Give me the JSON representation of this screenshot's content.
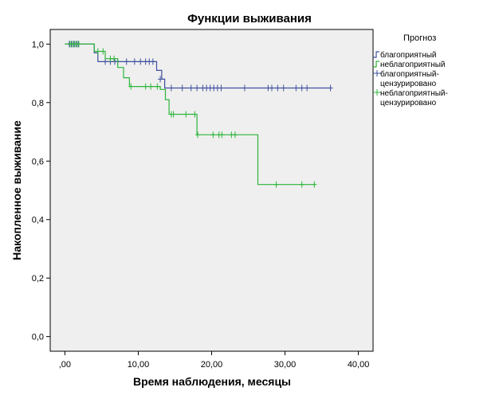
{
  "chart_data": {
    "type": "line",
    "title": "Функции выживания",
    "xlabel": "Время наблюдения, месяцы",
    "ylabel": "Накопленное выживание",
    "xlim": [
      -2,
      42
    ],
    "ylim": [
      -0.05,
      1.05
    ],
    "x_ticks": [
      0,
      10,
      20,
      30,
      40
    ],
    "x_tick_labels": [
      ",00",
      "10,00",
      "20,00",
      "30,00",
      "40,00"
    ],
    "y_ticks": [
      0,
      0.2,
      0.4,
      0.6,
      0.8,
      1.0
    ],
    "y_tick_labels": [
      "0,0",
      "0,2",
      "0,4",
      "0,6",
      "0,8",
      "1,0"
    ],
    "grid": false,
    "legend_title": "Прогноз",
    "legend_position": "right",
    "legend_entries": [
      {
        "label": "благоприятный",
        "symbol": "step",
        "color": "#3d4f9e"
      },
      {
        "label": "неблагоприятный",
        "symbol": "step",
        "color": "#2db53a"
      },
      {
        "label": "благоприятный-цензурировано",
        "symbol": "cross",
        "color": "#3d4f9e"
      },
      {
        "label": "неблагоприятный-цензурировано",
        "symbol": "cross",
        "color": "#2db53a"
      }
    ],
    "series": [
      {
        "name": "благоприятный",
        "color": "#3d4f9e",
        "steps": [
          [
            0,
            1.0
          ],
          [
            4.0,
            0.97
          ],
          [
            4.5,
            0.94
          ],
          [
            12.5,
            0.91
          ],
          [
            13.2,
            0.88
          ],
          [
            13.6,
            0.85
          ],
          [
            36.2,
            0.85
          ]
        ],
        "censored": [
          [
            0.6,
            1.0
          ],
          [
            0.9,
            1.0
          ],
          [
            1.2,
            1.0
          ],
          [
            1.5,
            1.0
          ],
          [
            1.8,
            1.0
          ],
          [
            5.5,
            0.94
          ],
          [
            6.2,
            0.94
          ],
          [
            6.8,
            0.94
          ],
          [
            7.2,
            0.94
          ],
          [
            8.4,
            0.94
          ],
          [
            9.5,
            0.94
          ],
          [
            10.3,
            0.94
          ],
          [
            11.0,
            0.94
          ],
          [
            11.5,
            0.94
          ],
          [
            12.0,
            0.94
          ],
          [
            13.0,
            0.88
          ],
          [
            14.5,
            0.85
          ],
          [
            16.0,
            0.85
          ],
          [
            17.2,
            0.85
          ],
          [
            18.0,
            0.85
          ],
          [
            18.8,
            0.85
          ],
          [
            19.3,
            0.85
          ],
          [
            19.8,
            0.85
          ],
          [
            20.3,
            0.85
          ],
          [
            20.8,
            0.85
          ],
          [
            21.3,
            0.85
          ],
          [
            24.5,
            0.85
          ],
          [
            27.7,
            0.85
          ],
          [
            28.2,
            0.85
          ],
          [
            29.0,
            0.85
          ],
          [
            29.8,
            0.85
          ],
          [
            31.5,
            0.85
          ],
          [
            32.3,
            0.85
          ],
          [
            33.0,
            0.85
          ],
          [
            36.2,
            0.85
          ]
        ]
      },
      {
        "name": "неблагоприятный",
        "color": "#2db53a",
        "steps": [
          [
            0,
            1.0
          ],
          [
            4.0,
            0.975
          ],
          [
            5.5,
            0.95
          ],
          [
            7.2,
            0.92
          ],
          [
            8.0,
            0.885
          ],
          [
            8.8,
            0.855
          ],
          [
            13.0,
            0.845
          ],
          [
            13.7,
            0.81
          ],
          [
            14.2,
            0.76
          ],
          [
            18.0,
            0.69
          ],
          [
            26.3,
            0.52
          ],
          [
            34.0,
            0.52
          ]
        ],
        "censored": [
          [
            0.7,
            1.0
          ],
          [
            1.0,
            1.0
          ],
          [
            1.3,
            1.0
          ],
          [
            1.6,
            1.0
          ],
          [
            1.9,
            1.0
          ],
          [
            4.5,
            0.975
          ],
          [
            5.2,
            0.975
          ],
          [
            6.2,
            0.95
          ],
          [
            6.7,
            0.95
          ],
          [
            9.0,
            0.855
          ],
          [
            11.0,
            0.855
          ],
          [
            11.7,
            0.855
          ],
          [
            12.6,
            0.855
          ],
          [
            14.5,
            0.76
          ],
          [
            14.8,
            0.76
          ],
          [
            16.5,
            0.76
          ],
          [
            17.7,
            0.76
          ],
          [
            18.1,
            0.69
          ],
          [
            20.2,
            0.69
          ],
          [
            21.0,
            0.69
          ],
          [
            21.4,
            0.69
          ],
          [
            22.7,
            0.69
          ],
          [
            23.2,
            0.69
          ],
          [
            28.8,
            0.52
          ],
          [
            32.3,
            0.52
          ],
          [
            34.0,
            0.52
          ]
        ]
      }
    ]
  }
}
